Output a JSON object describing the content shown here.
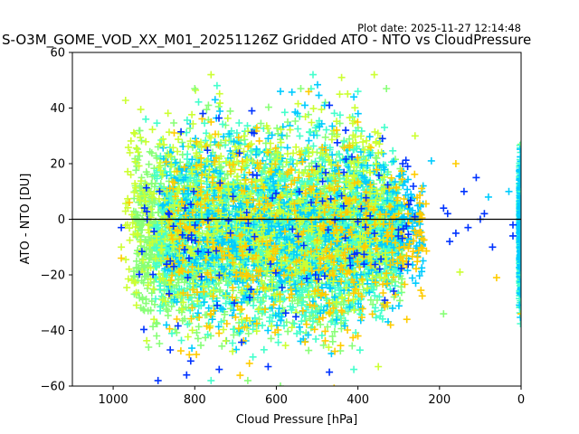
{
  "chart_data": {
    "type": "scatter",
    "title": "S-O3M_GOME_VOD_XX_M01_20251126Z Gridded ATO - NTO vs CloudPressure",
    "subtitle": "Plot date: 2025-11-27 12:14:48",
    "xlabel": "Cloud Pressure [hPa]",
    "ylabel": "ATO - NTO [DU]",
    "xlim": [
      1100,
      0
    ],
    "ylim": [
      -60,
      60
    ],
    "x_reversed": true,
    "xticks": [
      1000,
      800,
      600,
      400,
      200,
      0
    ],
    "yticks": [
      -60,
      -40,
      -20,
      0,
      20,
      40,
      60
    ],
    "reference_line_y": 0,
    "grid": false,
    "marker": "plus",
    "colors": [
      "#0033ff",
      "#00ccff",
      "#44ffcc",
      "#88ff77",
      "#ccff33",
      "#ffcc00"
    ],
    "sample_points": [
      {
        "x": 980,
        "y": -3,
        "c": 0
      },
      {
        "x": 890,
        "y": -58,
        "c": 0
      },
      {
        "x": 820,
        "y": -56,
        "c": 0
      },
      {
        "x": 810,
        "y": -51,
        "c": 0
      },
      {
        "x": 740,
        "y": -54,
        "c": 0
      },
      {
        "x": 620,
        "y": -53,
        "c": 0
      },
      {
        "x": 470,
        "y": -55,
        "c": 0
      },
      {
        "x": 860,
        "y": -47,
        "c": 0
      },
      {
        "x": 780,
        "y": 38,
        "c": 0
      },
      {
        "x": 660,
        "y": 39,
        "c": 0
      },
      {
        "x": 470,
        "y": 41,
        "c": 0
      },
      {
        "x": 430,
        "y": 32,
        "c": 0
      },
      {
        "x": 340,
        "y": 29,
        "c": 0
      },
      {
        "x": 290,
        "y": 20,
        "c": 0
      },
      {
        "x": 140,
        "y": 10,
        "c": 0
      },
      {
        "x": 110,
        "y": 15,
        "c": 0
      },
      {
        "x": 90,
        "y": 2,
        "c": 0
      },
      {
        "x": 70,
        "y": -10,
        "c": 0
      },
      {
        "x": 20,
        "y": -2,
        "c": 0
      },
      {
        "x": 190,
        "y": 4,
        "c": 0
      },
      {
        "x": 175,
        "y": -8,
        "c": 0
      },
      {
        "x": 160,
        "y": -5,
        "c": 0
      },
      {
        "x": 130,
        "y": -3,
        "c": 0
      },
      {
        "x": 100,
        "y": 0,
        "c": 0
      },
      {
        "x": 20,
        "y": -6,
        "c": 0
      },
      {
        "x": 180,
        "y": 2,
        "c": 0
      },
      {
        "x": 80,
        "y": 8,
        "c": 1
      },
      {
        "x": 30,
        "y": 10,
        "c": 1
      },
      {
        "x": 220,
        "y": 21,
        "c": 1
      },
      {
        "x": 530,
        "y": 41,
        "c": 1
      },
      {
        "x": 590,
        "y": 46,
        "c": 1
      },
      {
        "x": 410,
        "y": 44,
        "c": 1
      },
      {
        "x": 750,
        "y": 43,
        "c": 1
      },
      {
        "x": 920,
        "y": 36,
        "c": 2
      },
      {
        "x": 510,
        "y": 52,
        "c": 2
      },
      {
        "x": 540,
        "y": 47,
        "c": 3
      },
      {
        "x": 360,
        "y": 52,
        "c": 4
      },
      {
        "x": 760,
        "y": 52,
        "c": 4
      },
      {
        "x": 800,
        "y": 47,
        "c": 3
      },
      {
        "x": 400,
        "y": 46,
        "c": 2
      },
      {
        "x": 330,
        "y": 47,
        "c": 3
      },
      {
        "x": 440,
        "y": 51,
        "c": 4
      },
      {
        "x": 670,
        "y": -58,
        "c": 3
      },
      {
        "x": 590,
        "y": -60,
        "c": 3
      },
      {
        "x": 760,
        "y": -58,
        "c": 2
      },
      {
        "x": 410,
        "y": -54,
        "c": 2
      },
      {
        "x": 350,
        "y": -53,
        "c": 4
      },
      {
        "x": 900,
        "y": -36,
        "c": 4
      },
      {
        "x": 190,
        "y": -34,
        "c": 3
      },
      {
        "x": 150,
        "y": -19,
        "c": 4
      },
      {
        "x": 60,
        "y": -21,
        "c": 5
      },
      {
        "x": 260,
        "y": 30,
        "c": 4
      },
      {
        "x": 160,
        "y": 20,
        "c": 5
      },
      {
        "x": 280,
        "y": -36,
        "c": 5
      },
      {
        "x": 320,
        "y": -38,
        "c": 5
      },
      {
        "x": 400,
        "y": -42,
        "c": 5
      },
      {
        "x": 460,
        "y": -32,
        "c": 5
      },
      {
        "x": 980,
        "y": -14,
        "c": 5
      },
      {
        "x": 960,
        "y": 6,
        "c": 5
      },
      {
        "x": 980,
        "y": -10,
        "c": 4
      },
      {
        "x": 760,
        "y": 35,
        "c": 5
      },
      {
        "x": 620,
        "y": 24,
        "c": 5
      },
      {
        "x": 300,
        "y": 2,
        "c": 5
      },
      {
        "x": 250,
        "y": -5,
        "c": 5
      },
      {
        "x": 0,
        "y": -34,
        "c": 5
      },
      {
        "x": 0,
        "y": 27,
        "c": 3
      },
      {
        "x": 0,
        "y": 10,
        "c": 2
      },
      {
        "x": 0,
        "y": -20,
        "c": 2
      },
      {
        "x": 0,
        "y": -3,
        "c": 1
      }
    ],
    "clusters": [
      {
        "x_center": 620,
        "x_spread": 330,
        "y_center": -5,
        "y_spread": 16,
        "count": 2200,
        "c": 3
      },
      {
        "x_center": 600,
        "x_spread": 300,
        "y_center": -4,
        "y_spread": 17,
        "count": 1600,
        "c": 2
      },
      {
        "x_center": 560,
        "x_spread": 320,
        "y_center": -3,
        "y_spread": 18,
        "count": 900,
        "c": 1
      },
      {
        "x_center": 650,
        "x_spread": 320,
        "y_center": 2,
        "y_spread": 19,
        "count": 700,
        "c": 4
      },
      {
        "x_center": 550,
        "x_spread": 320,
        "y_center": -6,
        "y_spread": 19,
        "count": 500,
        "c": 5
      },
      {
        "x_center": 600,
        "x_spread": 340,
        "y_center": -4,
        "y_spread": 20,
        "count": 120,
        "c": 0
      },
      {
        "x_center": 2,
        "x_spread": 2,
        "y_center": -3,
        "y_spread": 14,
        "count": 260,
        "c": 2
      },
      {
        "x_center": 2,
        "x_spread": 2,
        "y_center": -3,
        "y_spread": 12,
        "count": 160,
        "c": 1
      }
    ]
  }
}
